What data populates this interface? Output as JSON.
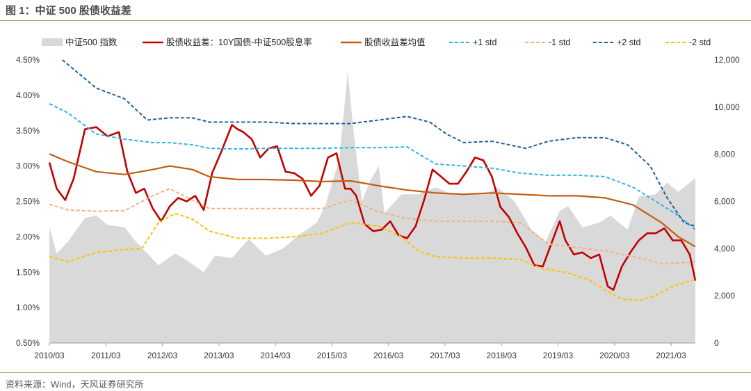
{
  "figure_title": "图 1：中证 500 股债收益差",
  "source_note": "资料来源：Wind，天风证券研究所",
  "colors": {
    "area": "#d9d9d9",
    "spread": "#c00000",
    "mean": "#c55a11",
    "plus1": "#2fb3e8",
    "minus1": "#f4b183",
    "plus2": "#1f5f9e",
    "minus2": "#ffc000"
  },
  "chart_data": {
    "type": "line",
    "title": "",
    "legend_position": "top",
    "grid": false,
    "x_tick_labels": [
      "2010/03",
      "2011/03",
      "2012/03",
      "2013/03",
      "2014/03",
      "2015/03",
      "2016/03",
      "2017/03",
      "2018/03",
      "2019/03",
      "2020/03",
      "2021/03"
    ],
    "x_range": [
      2010.17,
      2021.6
    ],
    "y_left": {
      "range": [
        0.005,
        0.045
      ],
      "tick_labels": [
        "4.50%",
        "4.00%",
        "3.50%",
        "3.00%",
        "2.50%",
        "2.00%",
        "1.50%",
        "1.00%",
        "0.50%"
      ]
    },
    "y_right": {
      "range": [
        0,
        12000
      ],
      "tick_labels": [
        "12,000",
        "10,000",
        "8,000",
        "6,000",
        "4,000",
        "2,000",
        "0"
      ]
    },
    "legend": [
      "中证500 指数",
      "股债收益差：10Y国债-中证500股息率",
      "股债收益差均值",
      "+1 std",
      "-1 std",
      "+2 std",
      "-2 std"
    ],
    "series": [
      {
        "name": "中证500 指数",
        "axis": "right",
        "kind": "area",
        "x": [
          2010.17,
          2010.3,
          2010.5,
          2010.8,
          2011.0,
          2011.2,
          2011.5,
          2011.7,
          2011.9,
          2012.1,
          2012.4,
          2012.6,
          2012.9,
          2013.1,
          2013.4,
          2013.7,
          2014.0,
          2014.3,
          2014.6,
          2014.9,
          2015.05,
          2015.3,
          2015.45,
          2015.55,
          2015.7,
          2015.85,
          2016.0,
          2016.1,
          2016.4,
          2016.7,
          2017.0,
          2017.3,
          2017.6,
          2017.9,
          2018.1,
          2018.4,
          2018.7,
          2018.95,
          2019.2,
          2019.35,
          2019.6,
          2019.9,
          2020.1,
          2020.4,
          2020.6,
          2020.9,
          2021.1,
          2021.3,
          2021.6
        ],
        "values": [
          4900,
          3800,
          4300,
          5300,
          5400,
          5000,
          4900,
          4300,
          3800,
          3300,
          3800,
          3500,
          3000,
          3700,
          3600,
          4400,
          3700,
          4000,
          4600,
          5100,
          5800,
          7800,
          11500,
          9000,
          6000,
          6900,
          7500,
          5500,
          6300,
          6300,
          6600,
          6300,
          6300,
          6300,
          6600,
          6000,
          4800,
          4300,
          5600,
          5800,
          4900,
          5100,
          5400,
          4800,
          6200,
          6300,
          6800,
          6400,
          7000
        ]
      },
      {
        "name": "股债收益差：10Y国债-中证500股息率",
        "axis": "left",
        "kind": "line",
        "x": [
          2010.17,
          2010.3,
          2010.45,
          2010.6,
          2010.8,
          2011.0,
          2011.2,
          2011.4,
          2011.55,
          2011.7,
          2011.85,
          2012.0,
          2012.15,
          2012.3,
          2012.45,
          2012.6,
          2012.75,
          2012.9,
          2013.05,
          2013.2,
          2013.4,
          2013.5,
          2013.6,
          2013.75,
          2013.9,
          2014.05,
          2014.2,
          2014.35,
          2014.5,
          2014.65,
          2014.8,
          2014.95,
          2015.1,
          2015.25,
          2015.4,
          2015.5,
          2015.6,
          2015.75,
          2015.9,
          2016.05,
          2016.2,
          2016.35,
          2016.5,
          2016.65,
          2016.8,
          2016.95,
          2017.1,
          2017.25,
          2017.4,
          2017.55,
          2017.7,
          2017.85,
          2018.0,
          2018.15,
          2018.3,
          2018.45,
          2018.6,
          2018.75,
          2018.9,
          2019.05,
          2019.2,
          2019.3,
          2019.45,
          2019.6,
          2019.75,
          2019.9,
          2020.05,
          2020.15,
          2020.3,
          2020.45,
          2020.6,
          2020.75,
          2020.9,
          2021.05,
          2021.2,
          2021.35,
          2021.5,
          2021.6
        ],
        "values": [
          0.0305,
          0.0268,
          0.0252,
          0.0282,
          0.0352,
          0.0355,
          0.0342,
          0.0348,
          0.0292,
          0.0262,
          0.0268,
          0.024,
          0.0222,
          0.0243,
          0.0255,
          0.025,
          0.0258,
          0.0238,
          0.029,
          0.0318,
          0.0358,
          0.0352,
          0.0348,
          0.0338,
          0.0312,
          0.0325,
          0.0328,
          0.0292,
          0.029,
          0.0282,
          0.0258,
          0.0272,
          0.0312,
          0.0318,
          0.0268,
          0.0268,
          0.0258,
          0.0218,
          0.0208,
          0.021,
          0.0222,
          0.0202,
          0.0198,
          0.0215,
          0.0252,
          0.0295,
          0.0285,
          0.0275,
          0.0275,
          0.0292,
          0.0312,
          0.0308,
          0.0285,
          0.0242,
          0.0228,
          0.0205,
          0.0185,
          0.016,
          0.0158,
          0.019,
          0.0222,
          0.0195,
          0.0175,
          0.0178,
          0.017,
          0.0175,
          0.013,
          0.0125,
          0.0158,
          0.0178,
          0.0195,
          0.0205,
          0.0205,
          0.0212,
          0.0195,
          0.0195,
          0.0175,
          0.0138
        ]
      },
      {
        "name": "股债收益差均值",
        "axis": "left",
        "kind": "line",
        "x": [
          2010.17,
          2010.5,
          2011.0,
          2011.5,
          2012.0,
          2012.3,
          2012.7,
          2013.0,
          2013.5,
          2014.0,
          2014.5,
          2015.0,
          2015.5,
          2016.0,
          2016.5,
          2017.0,
          2017.5,
          2018.0,
          2018.5,
          2019.0,
          2019.5,
          2020.0,
          2020.5,
          2021.0,
          2021.3,
          2021.6
        ],
        "values": [
          0.0317,
          0.0306,
          0.0292,
          0.0288,
          0.0295,
          0.03,
          0.0295,
          0.0285,
          0.0281,
          0.0281,
          0.028,
          0.0278,
          0.0279,
          0.0272,
          0.0266,
          0.0262,
          0.026,
          0.0262,
          0.026,
          0.0258,
          0.0258,
          0.0255,
          0.0245,
          0.022,
          0.02,
          0.0186
        ]
      },
      {
        "name": "+1 std",
        "axis": "left",
        "kind": "dashed",
        "x": [
          2010.17,
          2010.5,
          2011.0,
          2011.5,
          2012.0,
          2012.3,
          2012.7,
          2013.0,
          2013.5,
          2014.0,
          2014.5,
          2015.0,
          2015.5,
          2016.0,
          2016.5,
          2017.0,
          2017.5,
          2018.0,
          2018.5,
          2019.0,
          2019.5,
          2020.0,
          2020.5,
          2021.0,
          2021.3,
          2021.6
        ],
        "values": [
          0.0388,
          0.0375,
          0.0345,
          0.0338,
          0.0333,
          0.0333,
          0.033,
          0.0325,
          0.0324,
          0.0325,
          0.0325,
          0.0325,
          0.0326,
          0.0326,
          0.0327,
          0.0303,
          0.03,
          0.0297,
          0.029,
          0.0287,
          0.0287,
          0.0285,
          0.027,
          0.0245,
          0.023,
          0.021
        ]
      },
      {
        "name": "-1 std",
        "axis": "left",
        "kind": "dashed",
        "x": [
          2010.17,
          2010.5,
          2011.0,
          2011.5,
          2012.0,
          2012.3,
          2012.7,
          2013.0,
          2013.5,
          2014.0,
          2014.5,
          2015.0,
          2015.5,
          2016.0,
          2016.5,
          2017.0,
          2017.5,
          2018.0,
          2018.5,
          2019.0,
          2019.5,
          2020.0,
          2020.5,
          2021.0,
          2021.3,
          2021.6
        ],
        "values": [
          0.0246,
          0.0238,
          0.0236,
          0.0237,
          0.0258,
          0.0268,
          0.0252,
          0.024,
          0.024,
          0.024,
          0.024,
          0.024,
          0.0252,
          0.0235,
          0.0226,
          0.0222,
          0.0222,
          0.0222,
          0.022,
          0.019,
          0.0185,
          0.018,
          0.0172,
          0.0162,
          0.0163,
          0.0165
        ]
      },
      {
        "name": "+2 std",
        "axis": "left",
        "kind": "dashed",
        "x": [
          2010.4,
          2010.7,
          2011.0,
          2011.5,
          2011.9,
          2012.3,
          2012.7,
          2013.0,
          2013.5,
          2014.0,
          2014.5,
          2015.0,
          2015.5,
          2016.0,
          2016.5,
          2016.9,
          2017.2,
          2017.5,
          2018.0,
          2018.3,
          2018.6,
          2019.0,
          2019.5,
          2020.0,
          2020.4,
          2020.8,
          2021.1,
          2021.4,
          2021.6
        ],
        "values": [
          0.045,
          0.043,
          0.041,
          0.0395,
          0.0365,
          0.0368,
          0.0368,
          0.0362,
          0.0362,
          0.0362,
          0.036,
          0.036,
          0.036,
          0.0365,
          0.037,
          0.0362,
          0.0345,
          0.0333,
          0.0335,
          0.033,
          0.0325,
          0.0335,
          0.034,
          0.034,
          0.033,
          0.03,
          0.0255,
          0.022,
          0.0215
        ]
      },
      {
        "name": "-2 std",
        "axis": "left",
        "kind": "dashed",
        "x": [
          2010.17,
          2010.5,
          2011.0,
          2011.5,
          2011.8,
          2012.1,
          2012.4,
          2012.7,
          2013.0,
          2013.5,
          2014.0,
          2014.5,
          2015.0,
          2015.5,
          2016.0,
          2016.4,
          2016.7,
          2017.0,
          2017.5,
          2018.0,
          2018.5,
          2018.9,
          2019.3,
          2019.7,
          2020.0,
          2020.3,
          2020.6,
          2020.9,
          2021.2,
          2021.6
        ],
        "values": [
          0.0172,
          0.0165,
          0.0178,
          0.0182,
          0.0183,
          0.022,
          0.0233,
          0.0225,
          0.0208,
          0.0198,
          0.0198,
          0.02,
          0.0205,
          0.022,
          0.0215,
          0.02,
          0.018,
          0.0172,
          0.017,
          0.017,
          0.0168,
          0.0155,
          0.015,
          0.014,
          0.0125,
          0.0112,
          0.011,
          0.0117,
          0.013,
          0.014
        ]
      }
    ]
  }
}
